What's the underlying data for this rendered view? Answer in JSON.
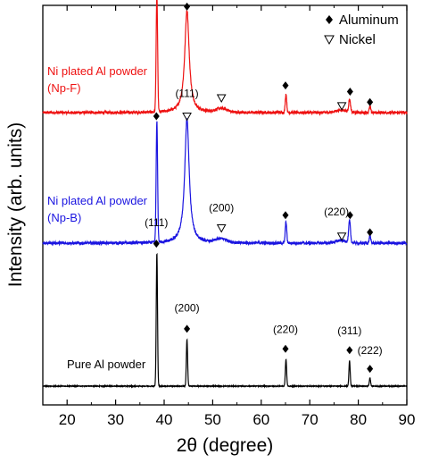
{
  "chart_data": {
    "type": "line",
    "xlabel": "2θ (degree)",
    "ylabel": "Intensity (arb. units)",
    "xlim": [
      15,
      90
    ],
    "xticks": [
      20,
      30,
      40,
      50,
      60,
      70,
      80,
      90
    ],
    "y_ticks_shown": false,
    "grid": false,
    "legend": {
      "placement": "top-right",
      "entries": [
        {
          "symbol": "diamond",
          "label": "Aluminum"
        },
        {
          "symbol": "triangle-down",
          "label": "Nickel"
        }
      ]
    },
    "series": [
      {
        "name_lines": [
          "Ni plated Al powder",
          "(Np-F)"
        ],
        "color": "#ee1111",
        "baseline": 0.7,
        "peaks": [
          {
            "x": 38.5,
            "height": 0.95,
            "width": 0.15,
            "shape": "gauss"
          },
          {
            "x": 44.7,
            "height": 0.83,
            "width": 0.55,
            "shape": "lorentz"
          },
          {
            "x": 65.1,
            "height": 0.15,
            "width": 0.15,
            "shape": "gauss"
          },
          {
            "x": 78.2,
            "height": 0.1,
            "width": 0.18,
            "shape": "gauss"
          },
          {
            "x": 82.4,
            "height": 0.05,
            "width": 0.15,
            "shape": "gauss"
          },
          {
            "x": 51.8,
            "height": 0.03,
            "width": 1.2,
            "shape": "gauss"
          },
          {
            "x": 76.5,
            "height": 0.02,
            "width": 1.2,
            "shape": "gauss"
          }
        ],
        "markers": [
          {
            "x": 38.4,
            "symbol": "diamond",
            "level": 1.0
          },
          {
            "x": 44.7,
            "symbol": "diamond",
            "level": 0.86
          },
          {
            "x": 44.7,
            "symbol": "triangle-down",
            "level": 0.965
          },
          {
            "x": 51.8,
            "symbol": "triangle-down",
            "level": 0.12
          },
          {
            "x": 65.0,
            "symbol": "diamond",
            "level": 0.22
          },
          {
            "x": 76.6,
            "symbol": "triangle-down",
            "level": 0.055
          },
          {
            "x": 78.3,
            "symbol": "diamond",
            "level": 0.17
          },
          {
            "x": 82.4,
            "symbol": "diamond",
            "level": 0.085
          }
        ],
        "hkl": []
      },
      {
        "name_lines": [
          "Ni plated Al powder",
          "(Np-B)"
        ],
        "color": "#1a14e0",
        "baseline": 0.7,
        "peaks": [
          {
            "x": 38.5,
            "height": 0.95,
            "width": 0.15,
            "shape": "gauss"
          },
          {
            "x": 44.7,
            "height": 0.98,
            "width": 0.55,
            "shape": "lorentz"
          },
          {
            "x": 65.1,
            "height": 0.17,
            "width": 0.15,
            "shape": "gauss"
          },
          {
            "x": 78.2,
            "height": 0.17,
            "width": 0.18,
            "shape": "gauss"
          },
          {
            "x": 82.4,
            "height": 0.06,
            "width": 0.15,
            "shape": "gauss"
          },
          {
            "x": 51.8,
            "height": 0.03,
            "width": 1.2,
            "shape": "gauss"
          },
          {
            "x": 76.5,
            "height": 0.02,
            "width": 1.2,
            "shape": "gauss"
          }
        ],
        "markers": [
          {
            "x": 38.4,
            "symbol": "diamond",
            "level": 1.0
          },
          {
            "x": 44.7,
            "symbol": "triangle-down",
            "level": 1.0
          },
          {
            "x": 51.8,
            "symbol": "triangle-down",
            "level": 0.12
          },
          {
            "x": 65.0,
            "symbol": "diamond",
            "level": 0.22
          },
          {
            "x": 76.6,
            "symbol": "triangle-down",
            "level": 0.055
          },
          {
            "x": 78.3,
            "symbol": "diamond",
            "level": 0.22
          },
          {
            "x": 82.4,
            "symbol": "diamond",
            "level": 0.085
          }
        ],
        "hkl": [
          {
            "x": 44.7,
            "text": "(111)",
            "level": 1.15
          },
          {
            "x": 51.8,
            "text": "(200)",
            "level": 0.25
          },
          {
            "x": 75.5,
            "text": "(220)",
            "level": 0.22
          }
        ]
      },
      {
        "name_lines": [
          "Pure Al powder"
        ],
        "color": "#000000",
        "baseline": 0.0,
        "peaks": [
          {
            "x": 38.5,
            "height": 1.0,
            "width": 0.13,
            "shape": "gauss"
          },
          {
            "x": 44.7,
            "height": 0.35,
            "width": 0.13,
            "shape": "gauss"
          },
          {
            "x": 65.1,
            "height": 0.2,
            "width": 0.13,
            "shape": "gauss"
          },
          {
            "x": 78.2,
            "height": 0.19,
            "width": 0.13,
            "shape": "gauss"
          },
          {
            "x": 82.4,
            "height": 0.06,
            "width": 0.13,
            "shape": "gauss"
          }
        ],
        "markers": [
          {
            "x": 38.4,
            "symbol": "diamond",
            "level": 1.07
          },
          {
            "x": 44.7,
            "symbol": "diamond",
            "level": 0.43
          },
          {
            "x": 65.0,
            "symbol": "diamond",
            "level": 0.28
          },
          {
            "x": 78.2,
            "symbol": "diamond",
            "level": 0.27
          },
          {
            "x": 82.4,
            "symbol": "diamond",
            "level": 0.13
          }
        ],
        "hkl": [
          {
            "x": 38.4,
            "text": "(111)",
            "level": 1.2
          },
          {
            "x": 44.7,
            "text": "(200)",
            "level": 0.56
          },
          {
            "x": 65.0,
            "text": "(220)",
            "level": 0.4
          },
          {
            "x": 78.2,
            "text": "(311)",
            "level": 0.39
          },
          {
            "x": 82.4,
            "text": "(222)",
            "level": 0.24
          }
        ]
      }
    ]
  }
}
